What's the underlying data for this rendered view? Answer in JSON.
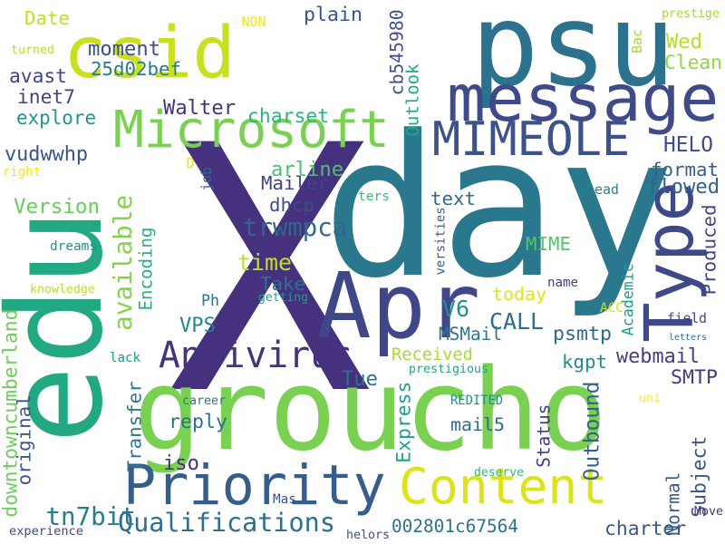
{
  "cloud": {
    "words": [
      {
        "text": "X",
        "color": "#46317e"
      },
      {
        "text": "day",
        "color": "#2a788e"
      },
      {
        "text": "groucho",
        "color": "#7ad151"
      },
      {
        "text": "edu",
        "color": "#23a884"
      },
      {
        "text": "psu",
        "color": "#2c718e"
      },
      {
        "text": "csid",
        "color": "#c8e020"
      },
      {
        "text": "Content",
        "color": "#dde318"
      },
      {
        "text": "Priority",
        "color": "#355e8d"
      },
      {
        "text": "Apr",
        "color": "#3f4788"
      },
      {
        "text": "message",
        "color": "#3e4a89"
      },
      {
        "text": "Microsoft",
        "color": "#7ad151"
      },
      {
        "text": "MIMEOLE",
        "color": "#3b528b"
      },
      {
        "text": "Type",
        "color": "#3e4989"
      },
      {
        "text": "Antivirus",
        "color": "#46337e"
      },
      {
        "text": "Qualifications",
        "color": "#2e6e8e"
      },
      {
        "text": "available",
        "color": "#84d44b"
      },
      {
        "text": "today",
        "color": "#e3e418"
      },
      {
        "text": "CALL",
        "color": "#2f6c8e"
      },
      {
        "text": "time",
        "color": "#c2df23"
      },
      {
        "text": "Encoding",
        "color": "#29af7f"
      },
      {
        "text": "Transfer",
        "color": "#2a768e"
      },
      {
        "text": "Express",
        "color": "#20a386"
      },
      {
        "text": "Outbound",
        "color": "#33628d"
      },
      {
        "text": "Subject",
        "color": "#39558c"
      },
      {
        "text": "Normal",
        "color": "#365c8d"
      },
      {
        "text": "Produced",
        "color": "#404688"
      },
      {
        "text": "Academic",
        "color": "#1fa088"
      },
      {
        "text": "Received",
        "color": "#a8db34"
      },
      {
        "text": "webmail",
        "color": "#433e85"
      },
      {
        "text": "SMTP",
        "color": "#453882"
      },
      {
        "text": "format",
        "color": "#355f8d"
      },
      {
        "text": "flowed",
        "color": "#33638d"
      },
      {
        "text": "HELO",
        "color": "#3c4f8a"
      },
      {
        "text": "Clean",
        "color": "#90d743"
      },
      {
        "text": "Wed",
        "color": "#b5de2b"
      },
      {
        "text": "Outlook",
        "color": "#22a785"
      },
      {
        "text": "cb545980",
        "color": "#3c508b"
      },
      {
        "text": "plain",
        "color": "#39568c"
      },
      {
        "text": "Walter",
        "color": "#46327e"
      },
      {
        "text": "charset",
        "color": "#2db27d"
      },
      {
        "text": "arline",
        "color": "#4ac16d"
      },
      {
        "text": "Mailer",
        "color": "#414487"
      },
      {
        "text": "dhcp",
        "color": "#3d4d8a"
      },
      {
        "text": "trwmpca",
        "color": "#31678e"
      },
      {
        "text": "text",
        "color": "#2f6b8e"
      },
      {
        "text": "MIME",
        "color": "#52c569"
      },
      {
        "text": "Take",
        "color": "#2d718e"
      },
      {
        "text": "V6",
        "color": "#21918c"
      },
      {
        "text": "MSMail",
        "color": "#2a788e"
      },
      {
        "text": "psmtp",
        "color": "#30698e"
      },
      {
        "text": "kgpt",
        "color": "#228c8d"
      },
      {
        "text": "Tue",
        "color": "#2e6f8e"
      },
      {
        "text": "Status",
        "color": "#443a83"
      },
      {
        "text": "mail5",
        "color": "#2e6d8e"
      },
      {
        "text": "reply",
        "color": "#2c728e"
      },
      {
        "text": "iso",
        "color": "#472d7b"
      },
      {
        "text": "original",
        "color": "#3a548c"
      },
      {
        "text": "downtowncumberland",
        "color": "#6ccd5a"
      },
      {
        "text": "tn7bit",
        "color": "#287c8e"
      },
      {
        "text": "002801c67564",
        "color": "#2c738e"
      },
      {
        "text": "charter",
        "color": "#375a8c"
      },
      {
        "text": "VPS",
        "color": "#25858e"
      },
      {
        "text": "Version",
        "color": "#67cc5c"
      },
      {
        "text": "vudwwhp",
        "color": "#3a538b"
      },
      {
        "text": "explore",
        "color": "#1f958b"
      },
      {
        "text": "inet7",
        "color": "#414487"
      },
      {
        "text": "avast",
        "color": "#3f4788"
      },
      {
        "text": "moment",
        "color": "#3c508b"
      },
      {
        "text": "25d02bef",
        "color": "#297a8e"
      },
      {
        "text": "Date",
        "color": "#c2df23"
      },
      {
        "text": "turned",
        "color": "#bade28"
      },
      {
        "text": "NON",
        "color": "#f1e51d"
      },
      {
        "text": "prestige",
        "color": "#a2da37"
      },
      {
        "text": "Bac",
        "color": "#a5db36"
      },
      {
        "text": "right",
        "color": "#f4e61e"
      },
      {
        "text": "D",
        "color": "#e7e419"
      },
      {
        "text": "job",
        "color": "#31688e"
      },
      {
        "text": "ters",
        "color": "#3bbb75"
      },
      {
        "text": "ahead",
        "color": "#26828e"
      },
      {
        "text": "versities",
        "color": "#34608d"
      },
      {
        "text": "dreams",
        "color": "#20928c"
      },
      {
        "text": "knowledge",
        "color": "#b8de29"
      },
      {
        "text": "getting",
        "color": "#1f9e89"
      },
      {
        "text": "Ph",
        "color": "#2c718e"
      },
      {
        "text": "name",
        "color": "#433e85"
      },
      {
        "text": "ACC",
        "color": "#d0e11c"
      },
      {
        "text": "field",
        "color": "#3f4889"
      },
      {
        "text": "letters",
        "color": "#2e6f8e"
      },
      {
        "text": "lack",
        "color": "#1f9a8a"
      },
      {
        "text": "prestigious",
        "color": "#22a884"
      },
      {
        "text": "career",
        "color": "#2c738e"
      },
      {
        "text": "REDITED",
        "color": "#21918c"
      },
      {
        "text": "uni",
        "color": "#fde725"
      },
      {
        "text": "deserve",
        "color": "#35b779"
      },
      {
        "text": "Mas",
        "color": "#3b528b"
      },
      {
        "text": "experience",
        "color": "#3e4a89"
      },
      {
        "text": "helors",
        "color": "#3c4f8a"
      },
      {
        "text": "Move",
        "color": "#453781"
      }
    ]
  }
}
